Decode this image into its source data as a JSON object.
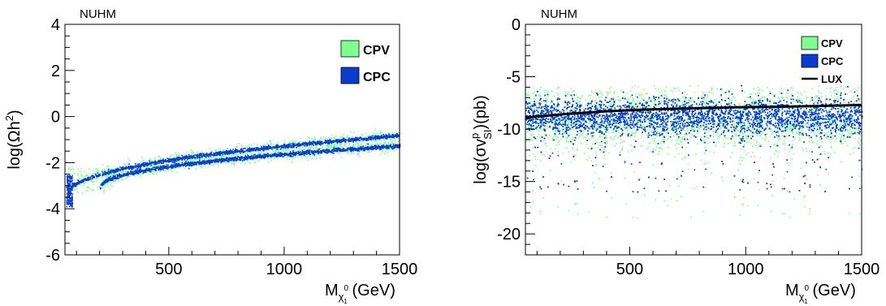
{
  "chart_data": [
    {
      "type": "scatter",
      "title": "NUHM",
      "xlabel_base": "M",
      "xlabel_sub": "χ",
      "xlabel_sup": "0",
      "xlabel_subsub": "1",
      "xlabel_unit": "(GeV)",
      "ylabel": "log(Ωh",
      "ylabel_sup": "2",
      "ylabel_close": ")",
      "xlim": [
        50,
        1500
      ],
      "ylim": [
        -6,
        4
      ],
      "xticks": [
        500,
        1000,
        1500
      ],
      "yticks": [
        -6,
        -4,
        -2,
        0,
        2,
        4
      ],
      "grid": false,
      "legend_position": "top-right",
      "series": [
        {
          "name": "CPV",
          "color": "#7fff8f",
          "bands": [
            {
              "x_start": 60,
              "x_end": 1500,
              "y_start": -3.4,
              "y_end": -0.8,
              "spread": 0.25
            },
            {
              "x_start": 200,
              "x_end": 1500,
              "y_start": -3.1,
              "y_end": -1.25,
              "spread": 0.25
            }
          ]
        },
        {
          "name": "CPC",
          "color": "#0a3ccf",
          "bands": [
            {
              "x_start": 60,
              "x_end": 1500,
              "y_start": -3.4,
              "y_end": -0.8,
              "spread": 0.12
            },
            {
              "x_start": 200,
              "x_end": 1500,
              "y_start": -3.1,
              "y_end": -1.25,
              "spread": 0.12
            }
          ]
        }
      ]
    },
    {
      "type": "scatter",
      "title": "NUHM",
      "xlabel_base": "M",
      "xlabel_sub": "χ",
      "xlabel_sup": "0",
      "xlabel_subsub": "1",
      "xlabel_unit": "(GeV)",
      "ylabel": "log(σv",
      "ylabel_sup": "p",
      "ylabel_sub": "SI",
      "ylabel_close": ")(pb)",
      "xlim": [
        50,
        1500
      ],
      "ylim": [
        -22,
        0
      ],
      "xticks": [
        500,
        1000,
        1500
      ],
      "yticks": [
        -20,
        -15,
        -10,
        -5,
        0
      ],
      "grid": false,
      "legend_position": "top-right",
      "series": [
        {
          "name": "CPV",
          "color": "#7fff8f",
          "y_center": -9.0,
          "y_spread": 2.8,
          "tail_min": -18.5
        },
        {
          "name": "CPC",
          "color": "#0a3ccf",
          "y_center": -8.8,
          "y_spread": 1.6,
          "tail_min": -16
        }
      ],
      "lines": [
        {
          "name": "LUX",
          "color": "#000000",
          "x": [
            50,
            200,
            400,
            600,
            800,
            1000,
            1200,
            1500
          ],
          "y": [
            -8.9,
            -8.6,
            -8.3,
            -8.1,
            -8.0,
            -7.9,
            -7.85,
            -7.7
          ]
        }
      ]
    }
  ]
}
